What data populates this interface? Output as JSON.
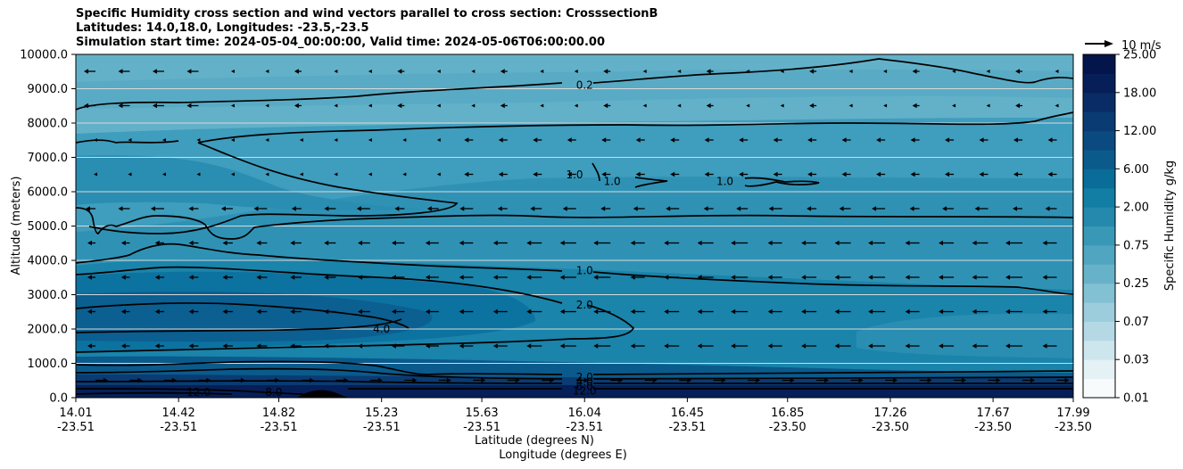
{
  "chart_data": {
    "type": "contour",
    "title_lines": [
      "Specific Humidity cross section and wind vectors parallel to cross section: CrosssectionB",
      "Latitudes: 14.0,18.0, Longitudes: -23.5,-23.5",
      "Simulation start time: 2024-05-04_00:00:00, Valid time: 2024-05-06T06:00:00.00"
    ],
    "ylabel": "Altitude (meters)",
    "xlabel_lines": [
      "Latitude (degrees N)",
      "Longitude (degrees E)"
    ],
    "ylim": [
      0,
      10000
    ],
    "y_ticks": [
      0,
      1000,
      2000,
      3000,
      4000,
      5000,
      6000,
      7000,
      8000,
      9000,
      10000
    ],
    "y_tick_labels": [
      "0.0",
      "1000.0",
      "2000.0",
      "3000.0",
      "4000.0",
      "5000.0",
      "6000.0",
      "7000.0",
      "8000.0",
      "9000.0",
      "10000.0"
    ],
    "x_ticks": [
      {
        "lat": "14.01",
        "lon": "-23.51"
      },
      {
        "lat": "14.42",
        "lon": "-23.51"
      },
      {
        "lat": "14.82",
        "lon": "-23.51"
      },
      {
        "lat": "15.23",
        "lon": "-23.51"
      },
      {
        "lat": "15.63",
        "lon": "-23.51"
      },
      {
        "lat": "16.04",
        "lon": "-23.51"
      },
      {
        "lat": "16.45",
        "lon": "-23.51"
      },
      {
        "lat": "16.85",
        "lon": "-23.50"
      },
      {
        "lat": "17.26",
        "lon": "-23.50"
      },
      {
        "lat": "17.67",
        "lon": "-23.50"
      },
      {
        "lat": "17.99",
        "lon": "-23.50"
      }
    ],
    "contour_labels": [
      {
        "text": "0.2",
        "lat": 16.04,
        "alt": 9100
      },
      {
        "text": "1.0",
        "lat": 16.04,
        "alt": 3700
      },
      {
        "text": "2.0",
        "lat": 16.04,
        "alt": 2700
      },
      {
        "text": "4.0",
        "lat": 15.23,
        "alt": 2000
      },
      {
        "text": "1.0",
        "lat": 16.0,
        "alt": 6500
      },
      {
        "text": "1.0",
        "lat": 16.15,
        "alt": 6300
      },
      {
        "text": "1.0",
        "lat": 16.6,
        "alt": 6300
      },
      {
        "text": "2.0",
        "lat": 16.04,
        "alt": 600
      },
      {
        "text": "4.0",
        "lat": 16.04,
        "alt": 450
      },
      {
        "text": "6.0",
        "lat": 16.04,
        "alt": 320
      },
      {
        "text": "12.0",
        "lat": 16.04,
        "alt": 200
      },
      {
        "text": "8.0",
        "lat": 14.8,
        "alt": 150
      },
      {
        "text": "12.0",
        "lat": 14.5,
        "alt": 150
      }
    ],
    "colorbar": {
      "label": "Specific Humidity g/kg",
      "tick_labels": [
        "0.01",
        "0.03",
        "0.07",
        "0.25",
        "0.75",
        "2.00",
        "6.00",
        "12.00",
        "18.00",
        "25.00"
      ],
      "colors": [
        "#f7fbfc",
        "#e4f1f5",
        "#cde6ee",
        "#b4d9e5",
        "#9ccddc",
        "#82c0d3",
        "#68b2c9",
        "#50a5c0",
        "#3a98b7",
        "#2489ac",
        "#127ea3",
        "#0a6c98",
        "#0b5a8c",
        "#0b4a80",
        "#0a3b73",
        "#0a2c66",
        "#061f58",
        "#03154a"
      ]
    },
    "quiver_key": "10 m/s"
  }
}
